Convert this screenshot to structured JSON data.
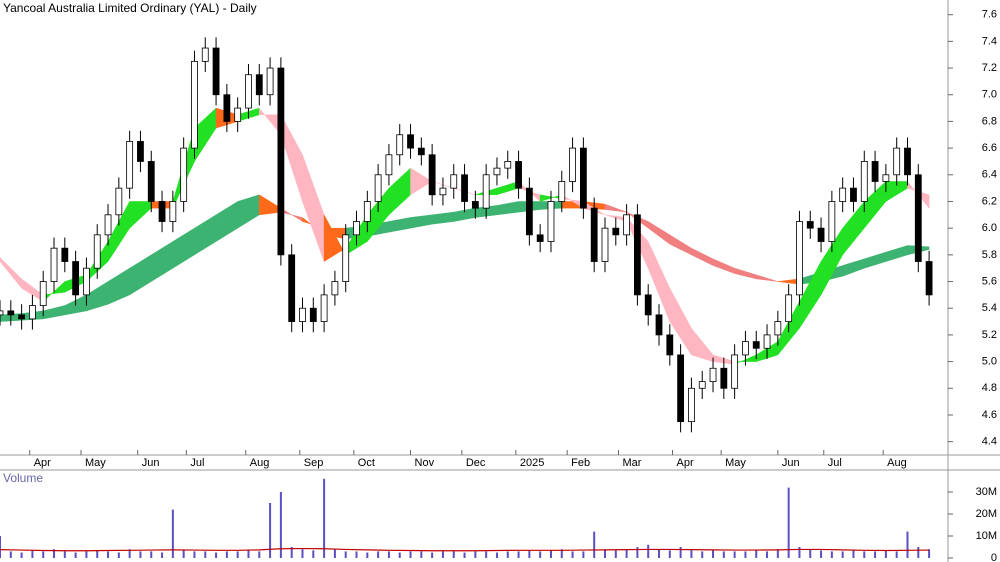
{
  "chart_data": {
    "type": "candlestick",
    "title": "Yancoal Australia Limited Ordinary (YAL) - Daily",
    "x": [
      0,
      4,
      8,
      12,
      16,
      20,
      24,
      28,
      32,
      36,
      40,
      44,
      48,
      52,
      56,
      60,
      64,
      68,
      72,
      76,
      80,
      84,
      88,
      92,
      96,
      100,
      104,
      108,
      112,
      116,
      120,
      124,
      128,
      132,
      136,
      140,
      144,
      148,
      152,
      156,
      160,
      164,
      168,
      172,
      176,
      180,
      184,
      188,
      192,
      196,
      200,
      204,
      208,
      212,
      216,
      220,
      224,
      228,
      232,
      236,
      240,
      244,
      248,
      252,
      256,
      260,
      264,
      268,
      272,
      276,
      280,
      284,
      288,
      292,
      296,
      300,
      304,
      308,
      312,
      316,
      320,
      324,
      328,
      332,
      336,
      340,
      344
    ],
    "open": [
      5.35,
      5.38,
      5.35,
      5.32,
      5.42,
      5.6,
      5.85,
      5.75,
      5.5,
      5.7,
      5.95,
      6.1,
      6.3,
      6.65,
      6.5,
      6.2,
      6.05,
      6.2,
      6.6,
      7.25,
      7.35,
      7.0,
      6.8,
      6.9,
      7.15,
      7.0,
      7.2,
      5.8,
      5.3,
      5.4,
      5.3,
      5.5,
      5.6,
      5.95,
      6.05,
      6.2,
      6.4,
      6.55,
      6.7,
      6.6,
      6.55,
      6.25,
      6.3,
      6.4,
      6.2,
      6.15,
      6.4,
      6.45,
      6.5,
      6.3,
      5.95,
      5.9,
      6.2,
      6.35,
      6.6,
      6.15,
      5.75,
      6.0,
      5.95,
      6.1,
      5.5,
      5.35,
      5.2,
      5.05,
      4.55,
      4.8,
      4.85,
      4.95,
      4.8,
      5.05,
      5.15,
      5.1,
      5.2,
      5.3,
      5.5,
      6.05,
      6.0,
      5.9,
      6.2,
      6.3,
      6.2,
      6.5,
      6.35,
      6.4,
      6.6,
      6.4,
      5.75
    ],
    "high": [
      5.46,
      5.46,
      5.43,
      5.5,
      5.68,
      5.93,
      5.93,
      5.83,
      5.78,
      6.03,
      6.18,
      6.38,
      6.73,
      6.73,
      6.58,
      6.28,
      6.28,
      6.68,
      7.33,
      7.43,
      7.43,
      7.08,
      6.98,
      7.23,
      7.23,
      7.28,
      7.28,
      5.88,
      5.48,
      5.48,
      5.58,
      5.68,
      6.03,
      6.13,
      6.28,
      6.48,
      6.63,
      6.78,
      6.78,
      6.68,
      6.63,
      6.38,
      6.48,
      6.48,
      6.28,
      6.48,
      6.53,
      6.58,
      6.58,
      6.38,
      6.03,
      6.28,
      6.43,
      6.68,
      6.68,
      6.23,
      6.08,
      6.08,
      6.18,
      6.18,
      5.58,
      5.43,
      5.28,
      5.13,
      4.88,
      4.93,
      5.03,
      5.03,
      5.13,
      5.23,
      5.23,
      5.28,
      5.38,
      5.58,
      6.13,
      6.13,
      6.08,
      6.28,
      6.38,
      6.38,
      6.58,
      6.58,
      6.48,
      6.68,
      6.68,
      6.48,
      5.83
    ],
    "low": [
      5.27,
      5.27,
      5.24,
      5.24,
      5.34,
      5.52,
      5.67,
      5.42,
      5.42,
      5.62,
      5.87,
      6.02,
      6.22,
      6.42,
      6.12,
      5.97,
      5.97,
      6.12,
      6.52,
      7.17,
      6.92,
      6.72,
      6.72,
      6.82,
      6.92,
      6.92,
      5.72,
      5.22,
      5.22,
      5.22,
      5.22,
      5.42,
      5.52,
      5.87,
      5.97,
      6.12,
      6.32,
      6.47,
      6.52,
      6.47,
      6.17,
      6.17,
      6.22,
      6.12,
      6.07,
      6.07,
      6.32,
      6.37,
      6.22,
      5.87,
      5.82,
      5.82,
      6.12,
      6.27,
      6.07,
      5.67,
      5.67,
      5.87,
      5.87,
      5.42,
      5.27,
      5.12,
      4.97,
      4.47,
      4.47,
      4.72,
      4.77,
      4.72,
      4.72,
      4.97,
      5.02,
      5.02,
      5.12,
      5.22,
      5.42,
      5.92,
      5.82,
      5.82,
      6.12,
      6.12,
      6.12,
      6.27,
      6.27,
      6.32,
      6.32,
      5.67,
      5.42
    ],
    "close": [
      5.38,
      5.35,
      5.32,
      5.42,
      5.6,
      5.85,
      5.75,
      5.5,
      5.7,
      5.95,
      6.1,
      6.3,
      6.65,
      6.5,
      6.2,
      6.05,
      6.2,
      6.6,
      7.25,
      7.35,
      7.0,
      6.8,
      6.9,
      7.15,
      7.0,
      7.2,
      5.8,
      5.3,
      5.4,
      5.3,
      5.5,
      5.6,
      5.95,
      6.05,
      6.2,
      6.4,
      6.55,
      6.7,
      6.6,
      6.55,
      6.25,
      6.3,
      6.4,
      6.2,
      6.15,
      6.4,
      6.45,
      6.5,
      6.3,
      5.95,
      5.9,
      6.2,
      6.35,
      6.6,
      6.15,
      5.75,
      6.0,
      5.95,
      6.1,
      5.5,
      5.35,
      5.2,
      5.05,
      4.55,
      4.8,
      4.85,
      4.95,
      4.8,
      5.05,
      5.15,
      5.1,
      5.2,
      5.3,
      5.5,
      6.05,
      6.0,
      5.9,
      6.2,
      6.3,
      6.2,
      6.5,
      6.35,
      6.4,
      6.6,
      6.4,
      5.75,
      5.5
    ],
    "xlim": [
      0,
      351
    ],
    "xticks": [
      {
        "value": 11,
        "label": "Apr"
      },
      {
        "value": 30,
        "label": "May"
      },
      {
        "value": 51,
        "label": "Jun"
      },
      {
        "value": 69,
        "label": "Jul"
      },
      {
        "value": 91,
        "label": "Aug"
      },
      {
        "value": 111,
        "label": "Sep"
      },
      {
        "value": 131,
        "label": "Oct"
      },
      {
        "value": 152,
        "label": "Nov"
      },
      {
        "value": 171,
        "label": "Dec"
      },
      {
        "value": 191,
        "label": "2025"
      },
      {
        "value": 210,
        "label": "Feb"
      },
      {
        "value": 229,
        "label": "Mar"
      },
      {
        "value": 249,
        "label": "Apr"
      },
      {
        "value": 267,
        "label": "May"
      },
      {
        "value": 288,
        "label": "Jun"
      },
      {
        "value": 305,
        "label": "Jul"
      },
      {
        "value": 327,
        "label": "Aug"
      }
    ],
    "ylim": [
      4.3,
      7.71
    ],
    "yticks": [
      4.4,
      4.6,
      4.8,
      {
        "value": 5,
        "label": "5.0"
      },
      5.2,
      5.4,
      5.6,
      5.8,
      {
        "value": 6,
        "label": "6.0"
      },
      6.2,
      6.4,
      6.6,
      6.8,
      {
        "value": 7,
        "label": "7.0"
      },
      7.2,
      7.4,
      7.6
    ],
    "ribbon_x": [
      0,
      8,
      16,
      24,
      32,
      40,
      48,
      56,
      64,
      72,
      80,
      88,
      96,
      104,
      112,
      120,
      128,
      136,
      144,
      152,
      160,
      168,
      176,
      184,
      192,
      200,
      208,
      216,
      224,
      232,
      240,
      248,
      256,
      264,
      272,
      280,
      288,
      296,
      304,
      312,
      320,
      328,
      336,
      344
    ],
    "ribbons": [
      {
        "short_ma": [
          5.35,
          5.36,
          5.38,
          5.42,
          5.5,
          5.6,
          5.7,
          5.8,
          5.9,
          6.0,
          6.1,
          6.2,
          6.25,
          6.15,
          6.05,
          6.0,
          6.0,
          6.02,
          6.05,
          6.08,
          6.1,
          6.12,
          6.15,
          6.17,
          6.2,
          6.2,
          6.2,
          6.2,
          6.18,
          6.12,
          6.0,
          5.88,
          5.8,
          5.72,
          5.66,
          5.62,
          5.6,
          5.62,
          5.67,
          5.72,
          5.77,
          5.82,
          5.87,
          5.86
        ],
        "long_ma": [
          5.3,
          5.31,
          5.32,
          5.35,
          5.38,
          5.43,
          5.5,
          5.6,
          5.7,
          5.8,
          5.9,
          6.0,
          6.1,
          6.12,
          6.08,
          5.95,
          5.92,
          5.94,
          5.97,
          6.0,
          6.03,
          6.05,
          6.08,
          6.1,
          6.12,
          6.14,
          6.15,
          6.15,
          6.14,
          6.12,
          6.05,
          5.95,
          5.85,
          5.77,
          5.7,
          5.65,
          5.6,
          5.58,
          5.6,
          5.64,
          5.7,
          5.75,
          5.8,
          5.84
        ],
        "colors": {
          "up": "#3cb371",
          "down": "#f08080",
          "mixed": "#ff6a1a"
        }
      },
      {
        "short_ma": [
          5.75,
          5.55,
          5.45,
          5.6,
          5.65,
          5.9,
          6.2,
          6.2,
          6.2,
          6.75,
          6.9,
          6.85,
          6.9,
          6.7,
          6.2,
          5.75,
          5.85,
          6.1,
          6.3,
          6.45,
          6.35,
          6.3,
          6.25,
          6.3,
          6.35,
          6.2,
          6.25,
          6.15,
          6.1,
          6.05,
          5.7,
          5.3,
          5.05,
          5.0,
          4.98,
          5.05,
          5.15,
          5.45,
          5.75,
          6.0,
          6.2,
          6.35,
          6.35,
          6.15
        ],
        "long_ma": [
          5.78,
          5.62,
          5.5,
          5.52,
          5.6,
          5.75,
          6.0,
          6.15,
          6.15,
          6.5,
          6.75,
          6.8,
          6.85,
          6.85,
          6.55,
          6.1,
          5.8,
          5.9,
          6.1,
          6.25,
          6.35,
          6.3,
          6.25,
          6.25,
          6.3,
          6.25,
          6.22,
          6.2,
          6.1,
          6.08,
          5.9,
          5.55,
          5.25,
          5.05,
          5.0,
          5.0,
          5.05,
          5.25,
          5.5,
          5.8,
          6.0,
          6.2,
          6.3,
          6.25
        ],
        "colors": {
          "up": "#22e022",
          "down": "#ffb6c1",
          "mixed": "#ff6a1a"
        }
      }
    ],
    "candle_colors": {
      "up": "#ffffff",
      "down": "#000000",
      "edge": "#000000"
    },
    "volume_label": "Volume",
    "volume": [
      10000000,
      3000000,
      2500000,
      3500000,
      3000000,
      4000000,
      3000000,
      2500000,
      3000000,
      3500000,
      3000000,
      2500000,
      4000000,
      3000000,
      3000000,
      2500000,
      22000000,
      3500000,
      3000000,
      3000000,
      2500000,
      3000000,
      3000000,
      3500000,
      3000000,
      25000000,
      30000000,
      5000000,
      4000000,
      3500000,
      36000000,
      4000000,
      3000000,
      3000000,
      2500000,
      3000000,
      3000000,
      2500000,
      3000000,
      3000000,
      2500000,
      3000000,
      3000000,
      2500000,
      3000000,
      3000000,
      2500000,
      3000000,
      3000000,
      3500000,
      3000000,
      3500000,
      4000000,
      3000000,
      3000000,
      12000000,
      4000000,
      3500000,
      4000000,
      5000000,
      6000000,
      4000000,
      3500000,
      5000000,
      4000000,
      3000000,
      3500000,
      3000000,
      3000000,
      3000000,
      3500000,
      3000000,
      4000000,
      32000000,
      5000000,
      4000000,
      3500000,
      3000000,
      3000000,
      3500000,
      3000000,
      3000000,
      3500000,
      3000000,
      12000000,
      5000000,
      4000000
    ],
    "volume_ma": [
      3800000,
      3600000,
      3400000,
      3300000,
      3300000,
      3400000,
      3500000,
      3600000,
      3700000,
      3600000,
      3500000,
      3500000,
      3700000,
      4200000,
      4300000,
      4200000,
      3900000,
      3700000,
      3500000,
      3400000,
      3300000,
      3300000,
      3300000,
      3400000,
      3500000,
      3500000,
      3500000,
      3600000,
      3700000,
      3800000,
      3900000,
      3900000,
      3800000,
      3700000,
      3600000,
      3600000,
      3700000,
      3900000,
      3900000,
      3700000,
      3500000,
      3400000,
      3500000,
      3600000
    ],
    "volume_color": "#5b4fc4",
    "volume_ma_color": "#c00000",
    "volume_ylim": [
      0,
      40000000
    ],
    "volume_yticks": [
      0,
      {
        "value": 10000000,
        "label": "10M"
      },
      {
        "value": 20000000,
        "label": "20M"
      },
      {
        "value": 30000000,
        "label": "30M"
      }
    ]
  }
}
